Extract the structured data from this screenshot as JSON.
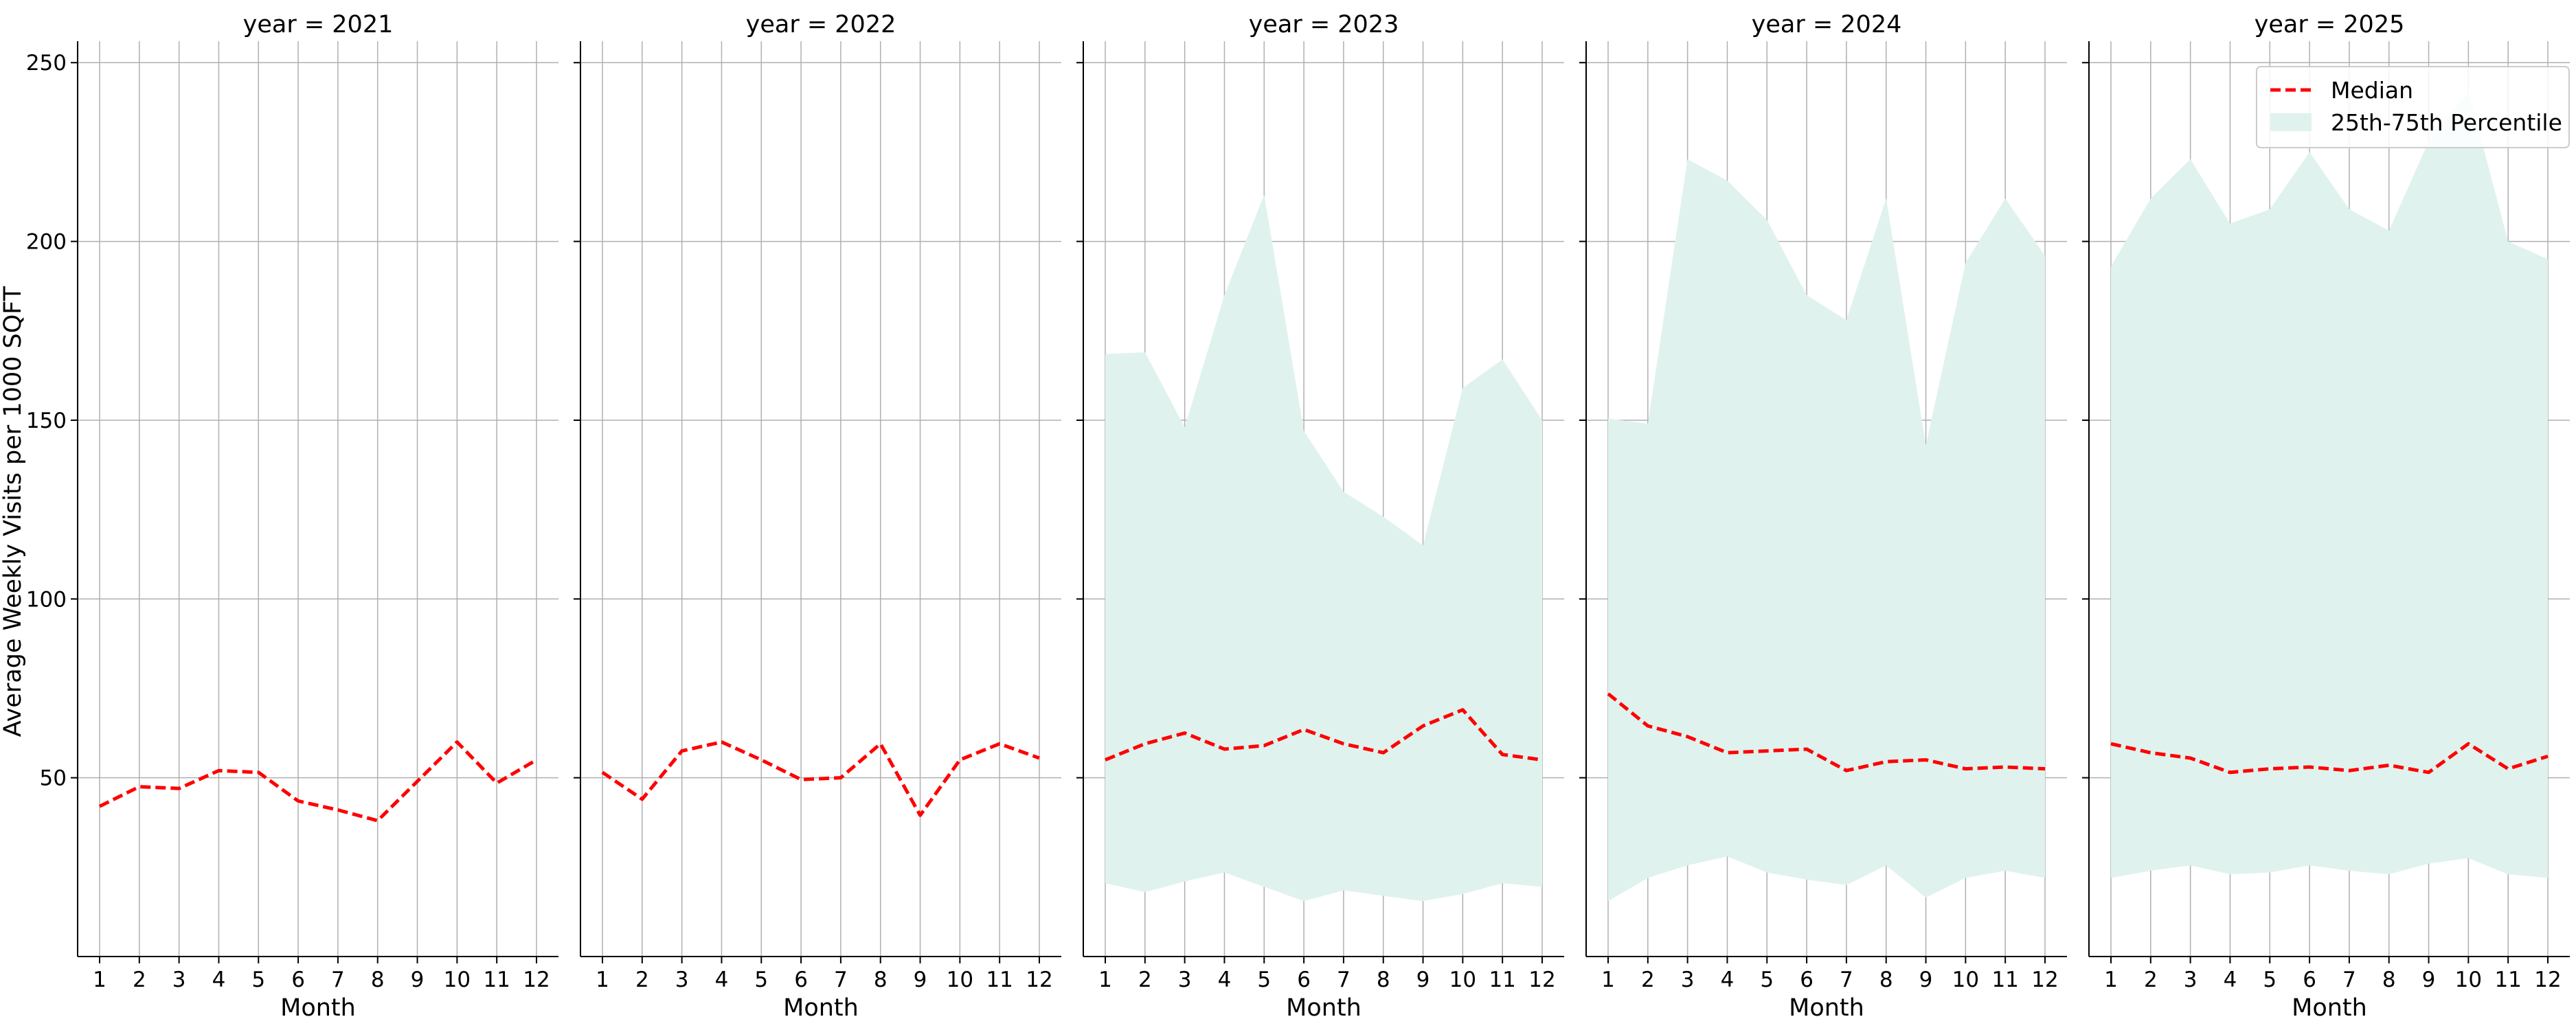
{
  "chart_data": {
    "type": "line",
    "ylabel": "Average Weekly Visits per 1000 SQFT",
    "xlabel": "Month",
    "x": [
      1,
      2,
      3,
      4,
      5,
      6,
      7,
      8,
      9,
      10,
      11,
      12
    ],
    "ylim": [
      0,
      256
    ],
    "yticks": [
      50,
      100,
      150,
      200,
      250
    ],
    "grid": true,
    "legend": {
      "placement": "top-right",
      "entries": [
        "Median",
        "25th-75th Percentile"
      ]
    },
    "colors": {
      "median": "#ff0000",
      "band": "#dff2ee",
      "grid": "#b0b0b0",
      "axis": "#000000"
    },
    "panels": [
      {
        "title": "year = 2021",
        "median": [
          42,
          47.5,
          47,
          52,
          51.5,
          43.5,
          41,
          38,
          49,
          60,
          48.5,
          55
        ],
        "p25": null,
        "p75": null
      },
      {
        "title": "year = 2022",
        "median": [
          51.5,
          44,
          57.5,
          60,
          55,
          49.5,
          50,
          59.5,
          39.5,
          55,
          59.5,
          55.5
        ],
        "p25": null,
        "p75": null
      },
      {
        "title": "year = 2023",
        "median": [
          55,
          59.5,
          62.5,
          58,
          59,
          63.5,
          59.5,
          57,
          64.5,
          69,
          56.5,
          55
        ],
        "p25": [
          20.5,
          18,
          21,
          23.5,
          19.5,
          15.5,
          18.5,
          17,
          15.5,
          17.5,
          20.5,
          19.5
        ],
        "p75": [
          168.5,
          169,
          148,
          185,
          213,
          147,
          130,
          123,
          115,
          159,
          167,
          150
        ]
      },
      {
        "title": "year = 2024",
        "median": [
          73.5,
          64.5,
          61.5,
          57,
          57.5,
          58,
          52,
          54.5,
          55,
          52.5,
          53,
          52.5
        ],
        "p25": [
          15.5,
          22,
          25.5,
          28,
          23.5,
          21.5,
          20,
          25.5,
          16.5,
          22,
          24,
          22
        ],
        "p75": [
          150.5,
          149,
          223,
          217,
          206,
          185,
          178,
          212,
          143,
          194,
          212,
          196
        ]
      },
      {
        "title": "year = 2025",
        "median": [
          59.5,
          57,
          55.5,
          51.5,
          52.5,
          53,
          52,
          53.5,
          51.5,
          59.5,
          52.5,
          56
        ],
        "p25": [
          22,
          24,
          25.5,
          23,
          23.5,
          25.5,
          24,
          23,
          26,
          27.5,
          23,
          22
        ],
        "p75": [
          193,
          212,
          223,
          205,
          209,
          225,
          209,
          203,
          228,
          242,
          200,
          195
        ]
      }
    ]
  }
}
